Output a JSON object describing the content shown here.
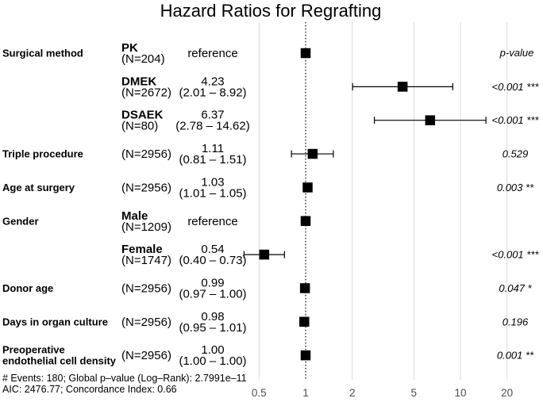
{
  "title": "Hazard Ratios for Regrafting",
  "chart_data": {
    "type": "forest",
    "x_scale": "log10",
    "xlim": [
      0.4,
      28
    ],
    "x_ticks": [
      "0.5",
      "1",
      "2",
      "5",
      "10",
      "20"
    ],
    "x_tick_values": [
      0.5,
      1,
      2,
      5,
      10,
      20
    ],
    "reference_value": 1,
    "grid": "vertical-only",
    "pvalue_header": "p-value",
    "rows": [
      {
        "variable": [
          "Surgical method"
        ],
        "level": "PK",
        "n": "(N=204)",
        "estimate": "reference",
        "ci": "",
        "hr": 1,
        "low": null,
        "high": null,
        "is_reference": true,
        "pvalue": ""
      },
      {
        "variable": [],
        "level": "DMEK",
        "n": "(N=2672)",
        "estimate": "4.23",
        "ci": "(2.01 – 8.92)",
        "hr": 4.23,
        "low": 2.01,
        "high": 8.92,
        "is_reference": false,
        "pvalue": "<0.001 ***"
      },
      {
        "variable": [],
        "level": "DSAEK",
        "n": "(N=80)",
        "estimate": "6.37",
        "ci": "(2.78 – 14.62)",
        "hr": 6.37,
        "low": 2.78,
        "high": 14.62,
        "is_reference": false,
        "pvalue": "<0.001 ***"
      },
      {
        "variable": [
          "Triple procedure"
        ],
        "level": "",
        "n": "(N=2956)",
        "estimate": "1.11",
        "ci": "(0.81 – 1.51)",
        "hr": 1.11,
        "low": 0.81,
        "high": 1.51,
        "is_reference": false,
        "pvalue": "0.529"
      },
      {
        "variable": [
          "Age at surgery"
        ],
        "level": "",
        "n": "(N=2956)",
        "estimate": "1.03",
        "ci": "(1.01 – 1.05)",
        "hr": 1.03,
        "low": 1.01,
        "high": 1.05,
        "is_reference": false,
        "pvalue": "0.003 **"
      },
      {
        "variable": [
          "Gender"
        ],
        "level": "Male",
        "n": "(N=1209)",
        "estimate": "reference",
        "ci": "",
        "hr": 1,
        "low": null,
        "high": null,
        "is_reference": true,
        "pvalue": ""
      },
      {
        "variable": [],
        "level": "Female",
        "n": "(N=1747)",
        "estimate": "0.54",
        "ci": "(0.40 – 0.73)",
        "hr": 0.54,
        "low": 0.4,
        "high": 0.73,
        "is_reference": false,
        "pvalue": "<0.001 ***"
      },
      {
        "variable": [
          "Donor age"
        ],
        "level": "",
        "n": "(N=2956)",
        "estimate": "0.99",
        "ci": "(0.97 – 1.00)",
        "hr": 0.99,
        "low": 0.97,
        "high": 1.0,
        "is_reference": false,
        "pvalue": "0.047 *"
      },
      {
        "variable": [
          "Days in organ culture"
        ],
        "level": "",
        "n": "(N=2956)",
        "estimate": "0.98",
        "ci": "(0.95 – 1.01)",
        "hr": 0.98,
        "low": 0.95,
        "high": 1.01,
        "is_reference": false,
        "pvalue": "0.196"
      },
      {
        "variable": [
          "Preoperative",
          "endothelial cell density"
        ],
        "level": "",
        "n": "(N=2956)",
        "estimate": "1.00",
        "ci": "(1.00 – 1.00)",
        "hr": 1.0,
        "low": 1.0,
        "high": 1.0,
        "is_reference": false,
        "pvalue": "0.001 **"
      }
    ],
    "footnote": [
      "# Events: 180; Global p–value (Log–Rank): 2.7991e–11",
      "AIC: 2476.77; Concordance Index: 0.66"
    ]
  },
  "colors": {
    "background": "#ffffff",
    "text": "#000000",
    "axis_text": "#4d4d4d",
    "gridline": "#d9d9d9",
    "marker": "#000000",
    "whisker": "#000000",
    "reference_line": "#000000"
  }
}
